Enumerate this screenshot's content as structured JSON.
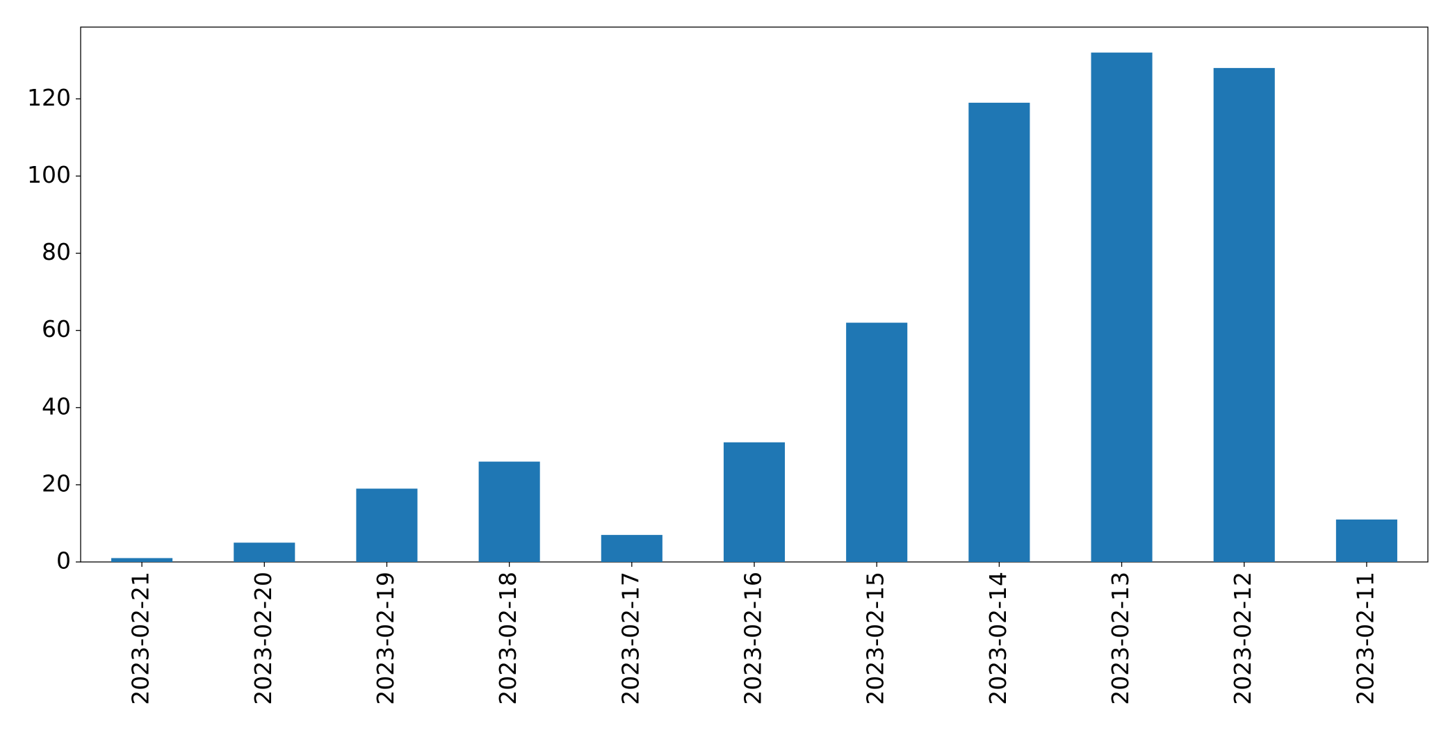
{
  "chart_data": {
    "type": "bar",
    "categories": [
      "2023-02-21",
      "2023-02-20",
      "2023-02-19",
      "2023-02-18",
      "2023-02-17",
      "2023-02-16",
      "2023-02-15",
      "2023-02-14",
      "2023-02-13",
      "2023-02-12",
      "2023-02-11"
    ],
    "values": [
      1,
      5,
      19,
      26,
      7,
      31,
      62,
      119,
      132,
      128,
      11
    ],
    "color": "#1f77b4",
    "ylim": [
      0,
      138.6
    ],
    "yticks": [
      0,
      20,
      40,
      60,
      80,
      100,
      120
    ],
    "grid": false
  }
}
